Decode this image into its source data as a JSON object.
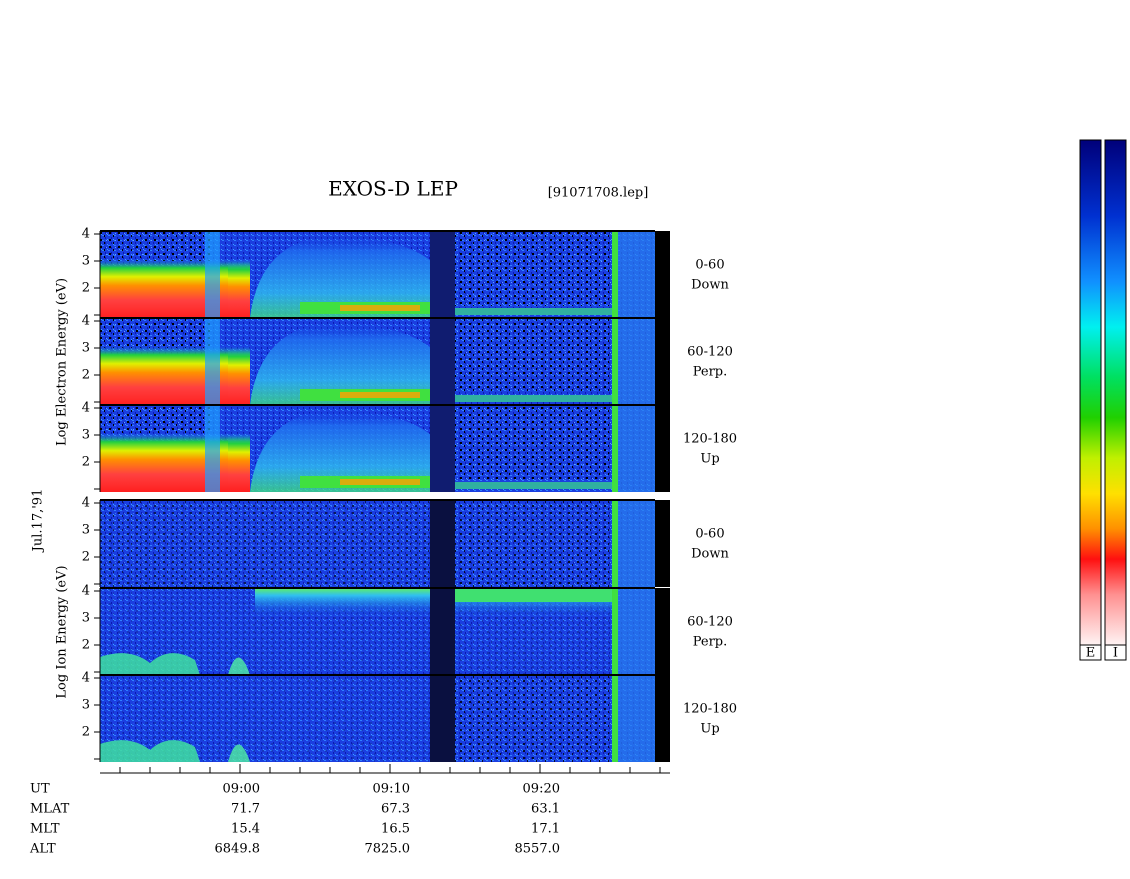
{
  "header": {
    "title": "EXOS-D LEP",
    "file": "[91071708.lep]"
  },
  "date": "Jul.17,'91",
  "electron": {
    "axis_label": "Log Electron Energy (eV)",
    "panels": [
      {
        "pitch": "0-60",
        "direction": "Down"
      },
      {
        "pitch": "60-120",
        "direction": "Perp."
      },
      {
        "pitch": "120-180",
        "direction": "Up"
      }
    ]
  },
  "ion": {
    "axis_label": "Log Ion Energy (eV)",
    "panels": [
      {
        "pitch": "0-60",
        "direction": "Down"
      },
      {
        "pitch": "60-120",
        "direction": "Perp."
      },
      {
        "pitch": "120-180",
        "direction": "Up"
      }
    ]
  },
  "y_tick_labels": [
    2,
    3,
    4
  ],
  "ephemeris": {
    "rows": [
      {
        "label": "UT",
        "values": [
          "09:00",
          "09:10",
          "09:20"
        ]
      },
      {
        "label": "MLAT",
        "values": [
          "71.7",
          "67.3",
          "63.1"
        ]
      },
      {
        "label": "MLT",
        "values": [
          "15.4",
          "16.5",
          "17.1"
        ]
      },
      {
        "label": "ALT",
        "values": [
          "6849.8",
          "7825.0",
          "8557.0"
        ]
      }
    ]
  },
  "colorbars": [
    "E",
    "I"
  ]
}
